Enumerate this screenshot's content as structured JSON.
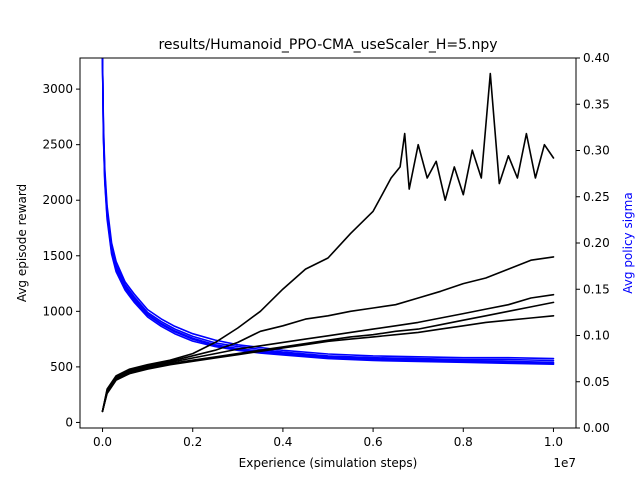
{
  "chart_data": {
    "type": "line",
    "title": "results/Humanoid_PPO-CMA_useScaler_H=5.npy",
    "xlabel": "Experience (simulation steps)",
    "x_offset_label": "1e7",
    "ylabel_left": "Avg episode reward",
    "ylabel_right": "Avg policy sigma",
    "colors": {
      "reward": "#000000",
      "sigma": "#0000ff",
      "sigma_label": "#0000ff"
    },
    "xlim": [
      -0.05,
      1.05
    ],
    "ylim_left": [
      -50,
      3280
    ],
    "ylim_right": [
      0.0,
      0.4
    ],
    "x_ticks": [
      0.0,
      0.2,
      0.4,
      0.6,
      0.8,
      1.0
    ],
    "x_tick_labels": [
      "0.0",
      "0.2",
      "0.4",
      "0.6",
      "0.8",
      "1.0"
    ],
    "y_left_ticks": [
      0,
      500,
      1000,
      1500,
      2000,
      2500,
      3000
    ],
    "y_left_tick_labels": [
      "0",
      "500",
      "1000",
      "1500",
      "2000",
      "2500",
      "3000"
    ],
    "y_right_ticks": [
      0.0,
      0.05,
      0.1,
      0.15,
      0.2,
      0.25,
      0.3,
      0.35,
      0.4
    ],
    "y_right_tick_labels": [
      "0.00",
      "0.05",
      "0.10",
      "0.15",
      "0.20",
      "0.25",
      "0.30",
      "0.35",
      "0.40"
    ],
    "grid": false,
    "legend": "none",
    "reward_series": [
      {
        "x": [
          0.0,
          0.01,
          0.03,
          0.06,
          0.1,
          0.15,
          0.2,
          0.25,
          0.3,
          0.35,
          0.4,
          0.45,
          0.5,
          0.55,
          0.6,
          0.62,
          0.64,
          0.66,
          0.67,
          0.68,
          0.7,
          0.72,
          0.74,
          0.76,
          0.78,
          0.8,
          0.82,
          0.84,
          0.86,
          0.88,
          0.9,
          0.92,
          0.94,
          0.96,
          0.98,
          1.0
        ],
        "y": [
          100,
          300,
          420,
          480,
          520,
          560,
          620,
          720,
          850,
          1000,
          1200,
          1380,
          1480,
          1700,
          1900,
          2050,
          2200,
          2300,
          2600,
          2100,
          2500,
          2200,
          2350,
          2000,
          2300,
          2050,
          2450,
          2200,
          3140,
          2150,
          2400,
          2200,
          2600,
          2200,
          2500,
          2380
        ]
      },
      {
        "x": [
          0.0,
          0.01,
          0.03,
          0.06,
          0.1,
          0.15,
          0.2,
          0.25,
          0.3,
          0.35,
          0.4,
          0.45,
          0.5,
          0.55,
          0.6,
          0.65,
          0.7,
          0.75,
          0.8,
          0.85,
          0.9,
          0.95,
          1.0
        ],
        "y": [
          100,
          290,
          410,
          470,
          510,
          550,
          600,
          650,
          720,
          820,
          870,
          930,
          960,
          1000,
          1030,
          1060,
          1120,
          1180,
          1250,
          1300,
          1380,
          1460,
          1490
        ]
      },
      {
        "x": [
          0.0,
          0.01,
          0.03,
          0.06,
          0.1,
          0.15,
          0.2,
          0.25,
          0.3,
          0.35,
          0.4,
          0.45,
          0.5,
          0.55,
          0.6,
          0.65,
          0.7,
          0.75,
          0.8,
          0.85,
          0.9,
          0.95,
          1.0
        ],
        "y": [
          100,
          280,
          400,
          460,
          500,
          540,
          580,
          620,
          660,
          690,
          720,
          750,
          780,
          810,
          840,
          870,
          900,
          940,
          980,
          1020,
          1060,
          1120,
          1150
        ]
      },
      {
        "x": [
          0.0,
          0.01,
          0.03,
          0.06,
          0.1,
          0.15,
          0.2,
          0.25,
          0.3,
          0.35,
          0.4,
          0.45,
          0.5,
          0.55,
          0.6,
          0.65,
          0.7,
          0.75,
          0.8,
          0.85,
          0.9,
          0.95,
          1.0
        ],
        "y": [
          100,
          270,
          390,
          450,
          490,
          530,
          560,
          590,
          620,
          650,
          680,
          710,
          740,
          770,
          790,
          820,
          840,
          880,
          920,
          960,
          1000,
          1040,
          1080
        ]
      },
      {
        "x": [
          0.0,
          0.01,
          0.03,
          0.06,
          0.1,
          0.15,
          0.2,
          0.25,
          0.3,
          0.35,
          0.4,
          0.45,
          0.5,
          0.55,
          0.6,
          0.65,
          0.7,
          0.75,
          0.8,
          0.85,
          0.9,
          0.95,
          1.0
        ],
        "y": [
          100,
          260,
          380,
          440,
          480,
          520,
          550,
          580,
          610,
          640,
          670,
          700,
          730,
          750,
          770,
          790,
          810,
          840,
          870,
          900,
          920,
          940,
          960
        ]
      }
    ],
    "sigma_series": [
      {
        "x": [
          0.0,
          0.002,
          0.005,
          0.01,
          0.02,
          0.03,
          0.05,
          0.07,
          0.1,
          0.13,
          0.16,
          0.2,
          0.25,
          0.3,
          0.35,
          0.4,
          0.5,
          0.6,
          0.7,
          0.8,
          0.9,
          1.0
        ],
        "y": [
          0.4,
          0.33,
          0.28,
          0.24,
          0.2,
          0.18,
          0.158,
          0.145,
          0.128,
          0.118,
          0.11,
          0.102,
          0.095,
          0.09,
          0.087,
          0.084,
          0.08,
          0.078,
          0.077,
          0.076,
          0.076,
          0.075
        ]
      },
      {
        "x": [
          0.0,
          0.002,
          0.005,
          0.01,
          0.02,
          0.03,
          0.05,
          0.07,
          0.1,
          0.13,
          0.16,
          0.2,
          0.25,
          0.3,
          0.35,
          0.4,
          0.5,
          0.6,
          0.7,
          0.8,
          0.9,
          1.0
        ],
        "y": [
          0.4,
          0.325,
          0.275,
          0.235,
          0.196,
          0.176,
          0.155,
          0.142,
          0.125,
          0.115,
          0.107,
          0.099,
          0.092,
          0.088,
          0.085,
          0.082,
          0.078,
          0.076,
          0.075,
          0.074,
          0.074,
          0.073
        ]
      },
      {
        "x": [
          0.0,
          0.002,
          0.005,
          0.01,
          0.02,
          0.03,
          0.05,
          0.07,
          0.1,
          0.13,
          0.16,
          0.2,
          0.25,
          0.3,
          0.35,
          0.4,
          0.5,
          0.6,
          0.7,
          0.8,
          0.9,
          1.0
        ],
        "y": [
          0.4,
          0.32,
          0.27,
          0.232,
          0.193,
          0.174,
          0.153,
          0.14,
          0.123,
          0.113,
          0.105,
          0.097,
          0.09,
          0.086,
          0.083,
          0.081,
          0.077,
          0.075,
          0.074,
          0.073,
          0.072,
          0.071
        ]
      },
      {
        "x": [
          0.0,
          0.002,
          0.005,
          0.01,
          0.02,
          0.03,
          0.05,
          0.07,
          0.1,
          0.13,
          0.16,
          0.2,
          0.25,
          0.3,
          0.35,
          0.4,
          0.5,
          0.6,
          0.7,
          0.8,
          0.9,
          1.0
        ],
        "y": [
          0.4,
          0.318,
          0.268,
          0.229,
          0.19,
          0.171,
          0.151,
          0.138,
          0.122,
          0.112,
          0.104,
          0.096,
          0.089,
          0.085,
          0.082,
          0.08,
          0.076,
          0.074,
          0.073,
          0.072,
          0.071,
          0.07
        ]
      },
      {
        "x": [
          0.0,
          0.002,
          0.005,
          0.01,
          0.02,
          0.03,
          0.05,
          0.07,
          0.1,
          0.13,
          0.16,
          0.2,
          0.25,
          0.3,
          0.35,
          0.4,
          0.5,
          0.6,
          0.7,
          0.8,
          0.9,
          1.0
        ],
        "y": [
          0.4,
          0.315,
          0.265,
          0.226,
          0.188,
          0.169,
          0.149,
          0.136,
          0.12,
          0.11,
          0.102,
          0.094,
          0.088,
          0.084,
          0.081,
          0.079,
          0.075,
          0.073,
          0.072,
          0.071,
          0.07,
          0.069
        ]
      }
    ]
  }
}
